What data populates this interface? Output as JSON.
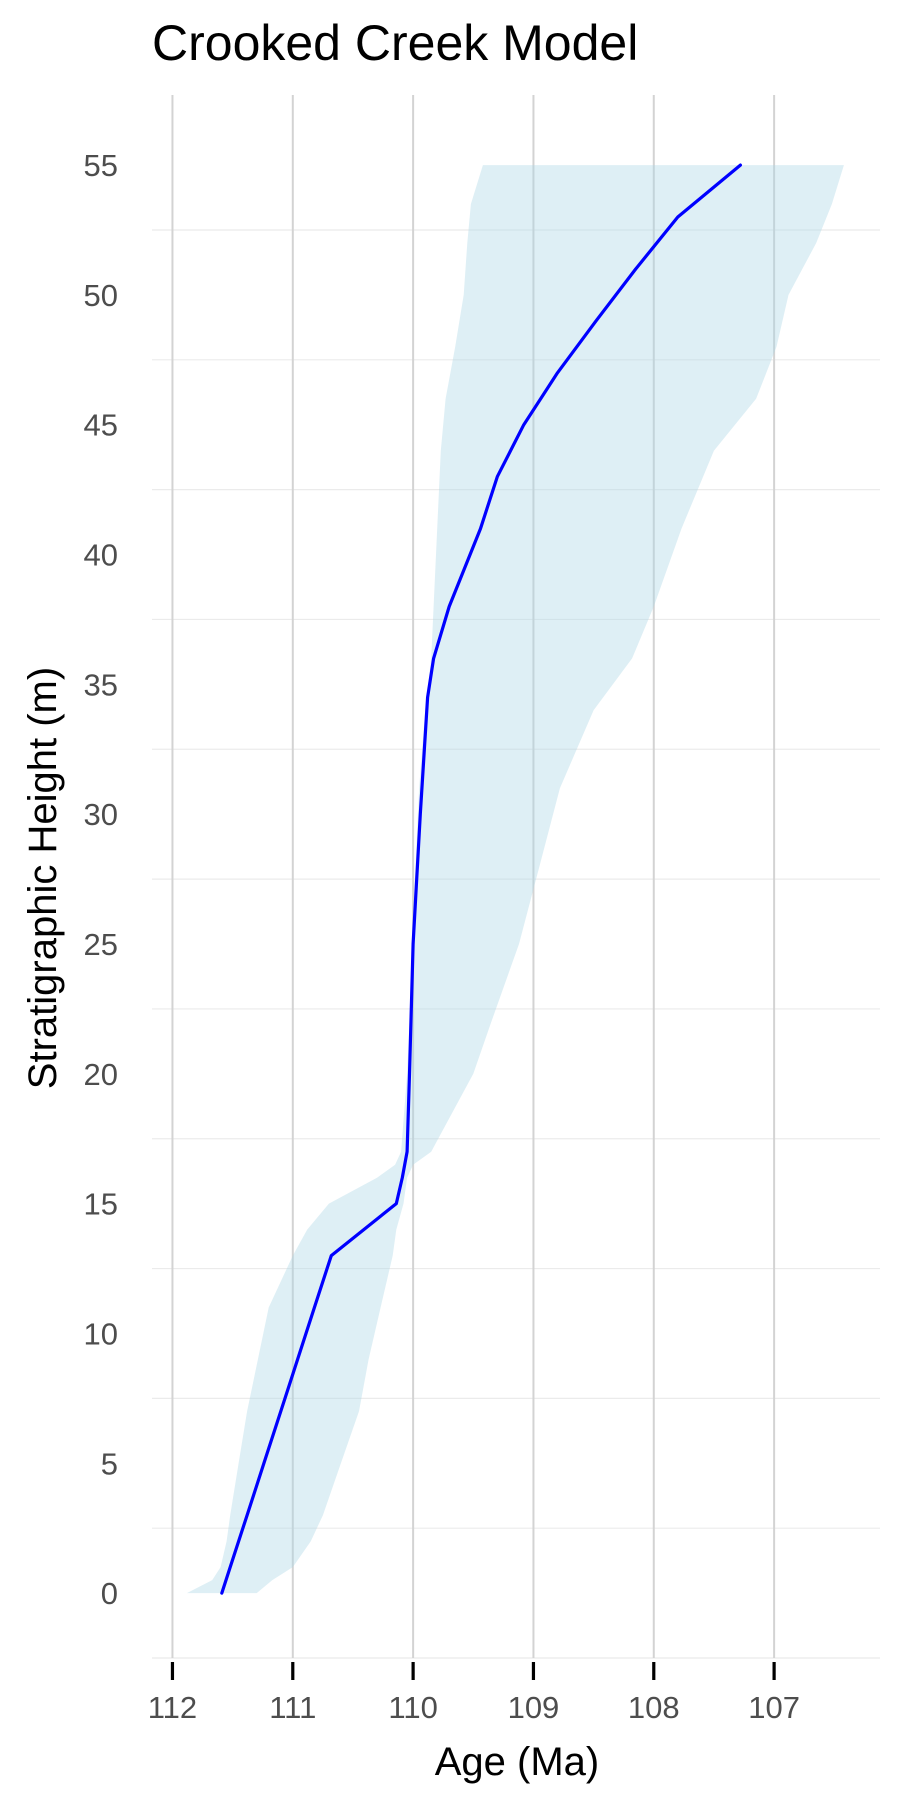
{
  "chart_data": {
    "type": "area",
    "title": "Crooked Creek Model",
    "xlabel": "Age (Ma)",
    "ylabel": "Stratigraphic Height (m)",
    "x_reversed": true,
    "xlim": [
      112.17,
      106.12
    ],
    "ylim": [
      -2.5,
      57.7
    ],
    "x_ticks": [
      112,
      111,
      110,
      109,
      108,
      107
    ],
    "y_ticks": [
      0,
      5,
      10,
      15,
      20,
      25,
      30,
      35,
      40,
      45,
      50,
      55
    ],
    "grid": true,
    "legend": "none",
    "colors": {
      "band_fill": "#add8e6",
      "median_line": "#0000ff",
      "grid_major": "#d3d3d3",
      "grid_minor": "#ebebeb",
      "tick_text": "#4d4d4d"
    },
    "series": [
      {
        "kind": "band",
        "points": [
          {
            "height": 0,
            "older": 111.88,
            "younger": 111.3
          },
          {
            "height": 0.5,
            "older": 111.67,
            "younger": 111.17
          },
          {
            "height": 1,
            "older": 111.6,
            "younger": 111.0
          },
          {
            "height": 2,
            "older": 111.55,
            "younger": 110.85
          },
          {
            "height": 3,
            "older": 111.52,
            "younger": 110.75
          },
          {
            "height": 5,
            "older": 111.45,
            "younger": 110.6
          },
          {
            "height": 7,
            "older": 111.38,
            "younger": 110.45
          },
          {
            "height": 9,
            "older": 111.29,
            "younger": 110.37
          },
          {
            "height": 11,
            "older": 111.2,
            "younger": 110.27
          },
          {
            "height": 13,
            "older": 111.0,
            "younger": 110.17
          },
          {
            "height": 14,
            "older": 110.88,
            "younger": 110.14
          },
          {
            "height": 15,
            "older": 110.7,
            "younger": 110.08
          },
          {
            "height": 16,
            "older": 110.3,
            "younger": 110.05
          },
          {
            "height": 16.5,
            "older": 110.15,
            "younger": 110.0
          },
          {
            "height": 17,
            "older": 110.1,
            "younger": 109.85
          },
          {
            "height": 20,
            "older": 110.05,
            "younger": 109.5
          },
          {
            "height": 22,
            "older": 110.03,
            "younger": 109.35
          },
          {
            "height": 25,
            "older": 110.01,
            "younger": 109.12
          },
          {
            "height": 28,
            "older": 109.98,
            "younger": 108.95
          },
          {
            "height": 31,
            "older": 109.95,
            "younger": 108.78
          },
          {
            "height": 34,
            "older": 109.9,
            "younger": 108.5
          },
          {
            "height": 36,
            "older": 109.85,
            "younger": 108.18
          },
          {
            "height": 38,
            "older": 109.83,
            "younger": 108.0
          },
          {
            "height": 41,
            "older": 109.8,
            "younger": 107.77
          },
          {
            "height": 44,
            "older": 109.77,
            "younger": 107.5
          },
          {
            "height": 46,
            "older": 109.73,
            "younger": 107.15
          },
          {
            "height": 48,
            "older": 109.65,
            "younger": 106.98
          },
          {
            "height": 50,
            "older": 109.58,
            "younger": 106.88
          },
          {
            "height": 52,
            "older": 109.55,
            "younger": 106.65
          },
          {
            "height": 53.5,
            "older": 109.52,
            "younger": 106.52
          },
          {
            "height": 55,
            "older": 109.42,
            "younger": 106.42
          }
        ]
      },
      {
        "kind": "median",
        "points": [
          {
            "height": 0,
            "age": 111.59
          },
          {
            "height": 1,
            "age": 111.52
          },
          {
            "height": 3,
            "age": 111.38
          },
          {
            "height": 5,
            "age": 111.24
          },
          {
            "height": 7,
            "age": 111.1
          },
          {
            "height": 9,
            "age": 110.96
          },
          {
            "height": 11,
            "age": 110.82
          },
          {
            "height": 13,
            "age": 110.68
          },
          {
            "height": 15,
            "age": 110.14
          },
          {
            "height": 16,
            "age": 110.09
          },
          {
            "height": 17,
            "age": 110.05
          },
          {
            "height": 20,
            "age": 110.03
          },
          {
            "height": 25,
            "age": 110.0
          },
          {
            "height": 30,
            "age": 109.94
          },
          {
            "height": 34.5,
            "age": 109.88
          },
          {
            "height": 36,
            "age": 109.83
          },
          {
            "height": 38,
            "age": 109.7
          },
          {
            "height": 41,
            "age": 109.44
          },
          {
            "height": 43,
            "age": 109.3
          },
          {
            "height": 45,
            "age": 109.08
          },
          {
            "height": 47,
            "age": 108.8
          },
          {
            "height": 49,
            "age": 108.48
          },
          {
            "height": 51,
            "age": 108.15
          },
          {
            "height": 53,
            "age": 107.8
          },
          {
            "height": 55,
            "age": 107.28
          }
        ]
      }
    ]
  }
}
